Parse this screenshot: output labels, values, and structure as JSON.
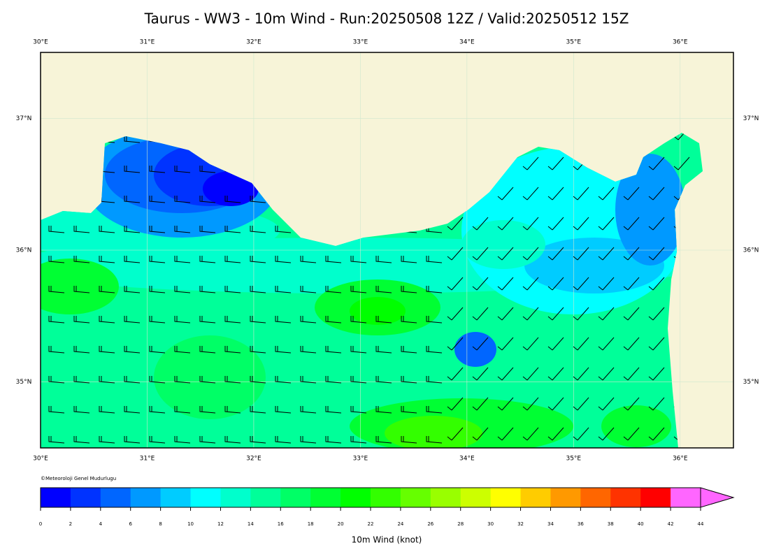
{
  "title": "Taurus - WW3 - 10m Wind - Run:20250508 12Z / Valid:20250512 15Z",
  "map": {
    "lon_range": [
      30,
      36.5
    ],
    "lat_range": [
      34.5,
      37.5
    ],
    "lon_ticks": [
      {
        "value": 30,
        "label": "30°E"
      },
      {
        "value": 31,
        "label": "31°E"
      },
      {
        "value": 32,
        "label": "32°E"
      },
      {
        "value": 33,
        "label": "33°E"
      },
      {
        "value": 34,
        "label": "34°E"
      },
      {
        "value": 35,
        "label": "35°E"
      },
      {
        "value": 36,
        "label": "36°E"
      }
    ],
    "lat_ticks": [
      {
        "value": 35,
        "label": "35°N"
      },
      {
        "value": 36,
        "label": "36°N"
      },
      {
        "value": 37,
        "label": "37°N"
      }
    ],
    "credit": "©Meteoroloji Genel Mudurlugu"
  },
  "colorbar": {
    "ticks": [
      0,
      2,
      4,
      6,
      8,
      10,
      12,
      14,
      16,
      18,
      20,
      22,
      24,
      26,
      28,
      30,
      32,
      34,
      36,
      38,
      40,
      42,
      44
    ],
    "colors": [
      "#0000ff",
      "#0033ff",
      "#0066ff",
      "#0099ff",
      "#00ccff",
      "#00ffff",
      "#00ffcc",
      "#00ff99",
      "#00ff66",
      "#00ff33",
      "#00ff00",
      "#33ff00",
      "#66ff00",
      "#99ff00",
      "#ccff00",
      "#ffff00",
      "#ffcc00",
      "#ff9900",
      "#ff6600",
      "#ff3300",
      "#ff0000",
      "#ff66ff"
    ],
    "label": "10m Wind (knot)"
  }
}
